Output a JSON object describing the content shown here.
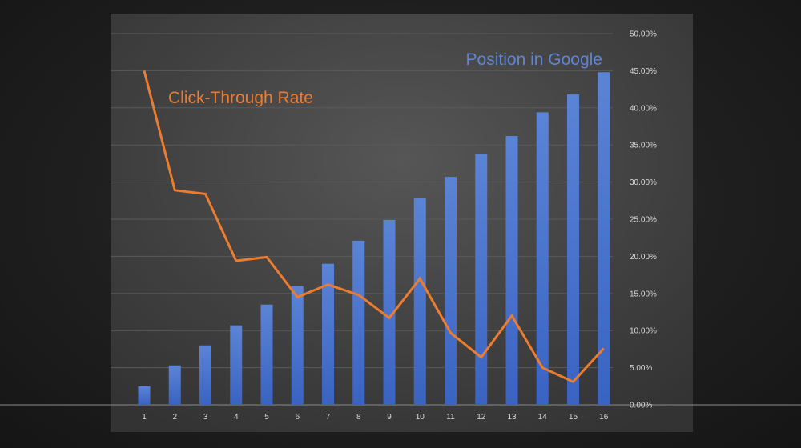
{
  "chart_data": {
    "type": "bar",
    "categories": [
      "1",
      "2",
      "3",
      "4",
      "5",
      "6",
      "7",
      "8",
      "9",
      "10",
      "11",
      "12",
      "13",
      "14",
      "15",
      "16"
    ],
    "ylim": [
      0,
      50
    ],
    "y_ticks": [
      "0.00%",
      "5.00%",
      "10.00%",
      "15.00%",
      "20.00%",
      "25.00%",
      "30.00%",
      "35.00%",
      "40.00%",
      "45.00%",
      "50.00%"
    ],
    "grid": true,
    "y_axis_side": "right",
    "series": [
      {
        "name": "Position in Google",
        "type": "bar",
        "color": "#4a72c9",
        "values": [
          2.5,
          5.3,
          8.0,
          10.7,
          13.5,
          16.0,
          19.0,
          22.1,
          24.9,
          27.8,
          30.7,
          33.8,
          36.2,
          39.4,
          41.8,
          44.8
        ]
      },
      {
        "name": "Click-Through Rate",
        "type": "line",
        "color": "#ec7c30",
        "values": [
          45.0,
          28.9,
          28.4,
          19.4,
          19.9,
          14.5,
          16.2,
          14.8,
          11.7,
          17.0,
          9.7,
          6.4,
          12.0,
          5.0,
          3.1,
          7.6
        ]
      }
    ]
  }
}
